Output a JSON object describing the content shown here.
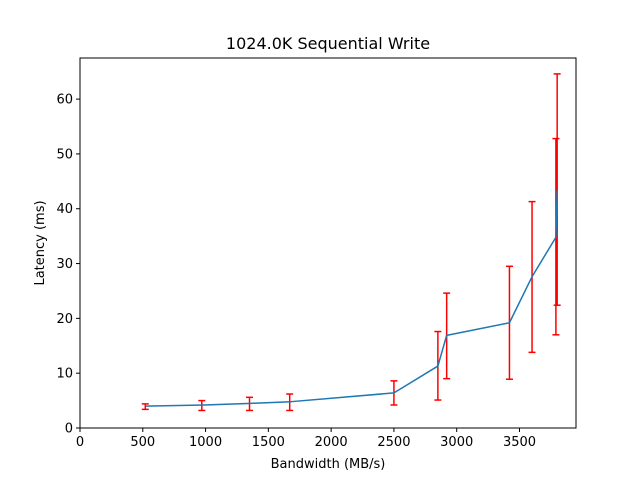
{
  "chart_data": {
    "type": "line",
    "title": "1024.0K  Sequential Write",
    "xlabel": "Bandwidth (MB/s)",
    "ylabel": "Latency (ms)",
    "xlim": [
      0,
      3950
    ],
    "ylim": [
      0,
      67.5
    ],
    "xticks": [
      0,
      500,
      1000,
      1500,
      2000,
      2500,
      3000,
      3500
    ],
    "yticks": [
      0,
      10,
      20,
      30,
      40,
      50,
      60
    ],
    "grid": false,
    "series": [
      {
        "color": "#1f77b4",
        "x": [
          520,
          990,
          1360,
          1680,
          2500,
          2850,
          2920,
          3420,
          3600,
          3790,
          3800
        ],
        "y": [
          4.0,
          4.2,
          4.5,
          4.8,
          6.4,
          11.3,
          16.9,
          19.2,
          27.6,
          34.8,
          43.4
        ]
      }
    ],
    "error_bars": {
      "color": "#ff0000",
      "points": [
        {
          "x": 520,
          "low": 3.4,
          "high": 4.4
        },
        {
          "x": 970,
          "low": 3.2,
          "high": 5.0
        },
        {
          "x": 1350,
          "low": 3.2,
          "high": 5.6
        },
        {
          "x": 1670,
          "low": 3.2,
          "high": 6.2
        },
        {
          "x": 2500,
          "low": 4.2,
          "high": 8.6
        },
        {
          "x": 2850,
          "low": 5.1,
          "high": 17.6
        },
        {
          "x": 2920,
          "low": 9.0,
          "high": 24.6
        },
        {
          "x": 3420,
          "low": 8.9,
          "high": 29.5
        },
        {
          "x": 3600,
          "low": 13.8,
          "high": 41.3
        },
        {
          "x": 3790,
          "low": 17.0,
          "high": 52.8
        },
        {
          "x": 3800,
          "low": 22.4,
          "high": 64.6
        }
      ]
    }
  }
}
